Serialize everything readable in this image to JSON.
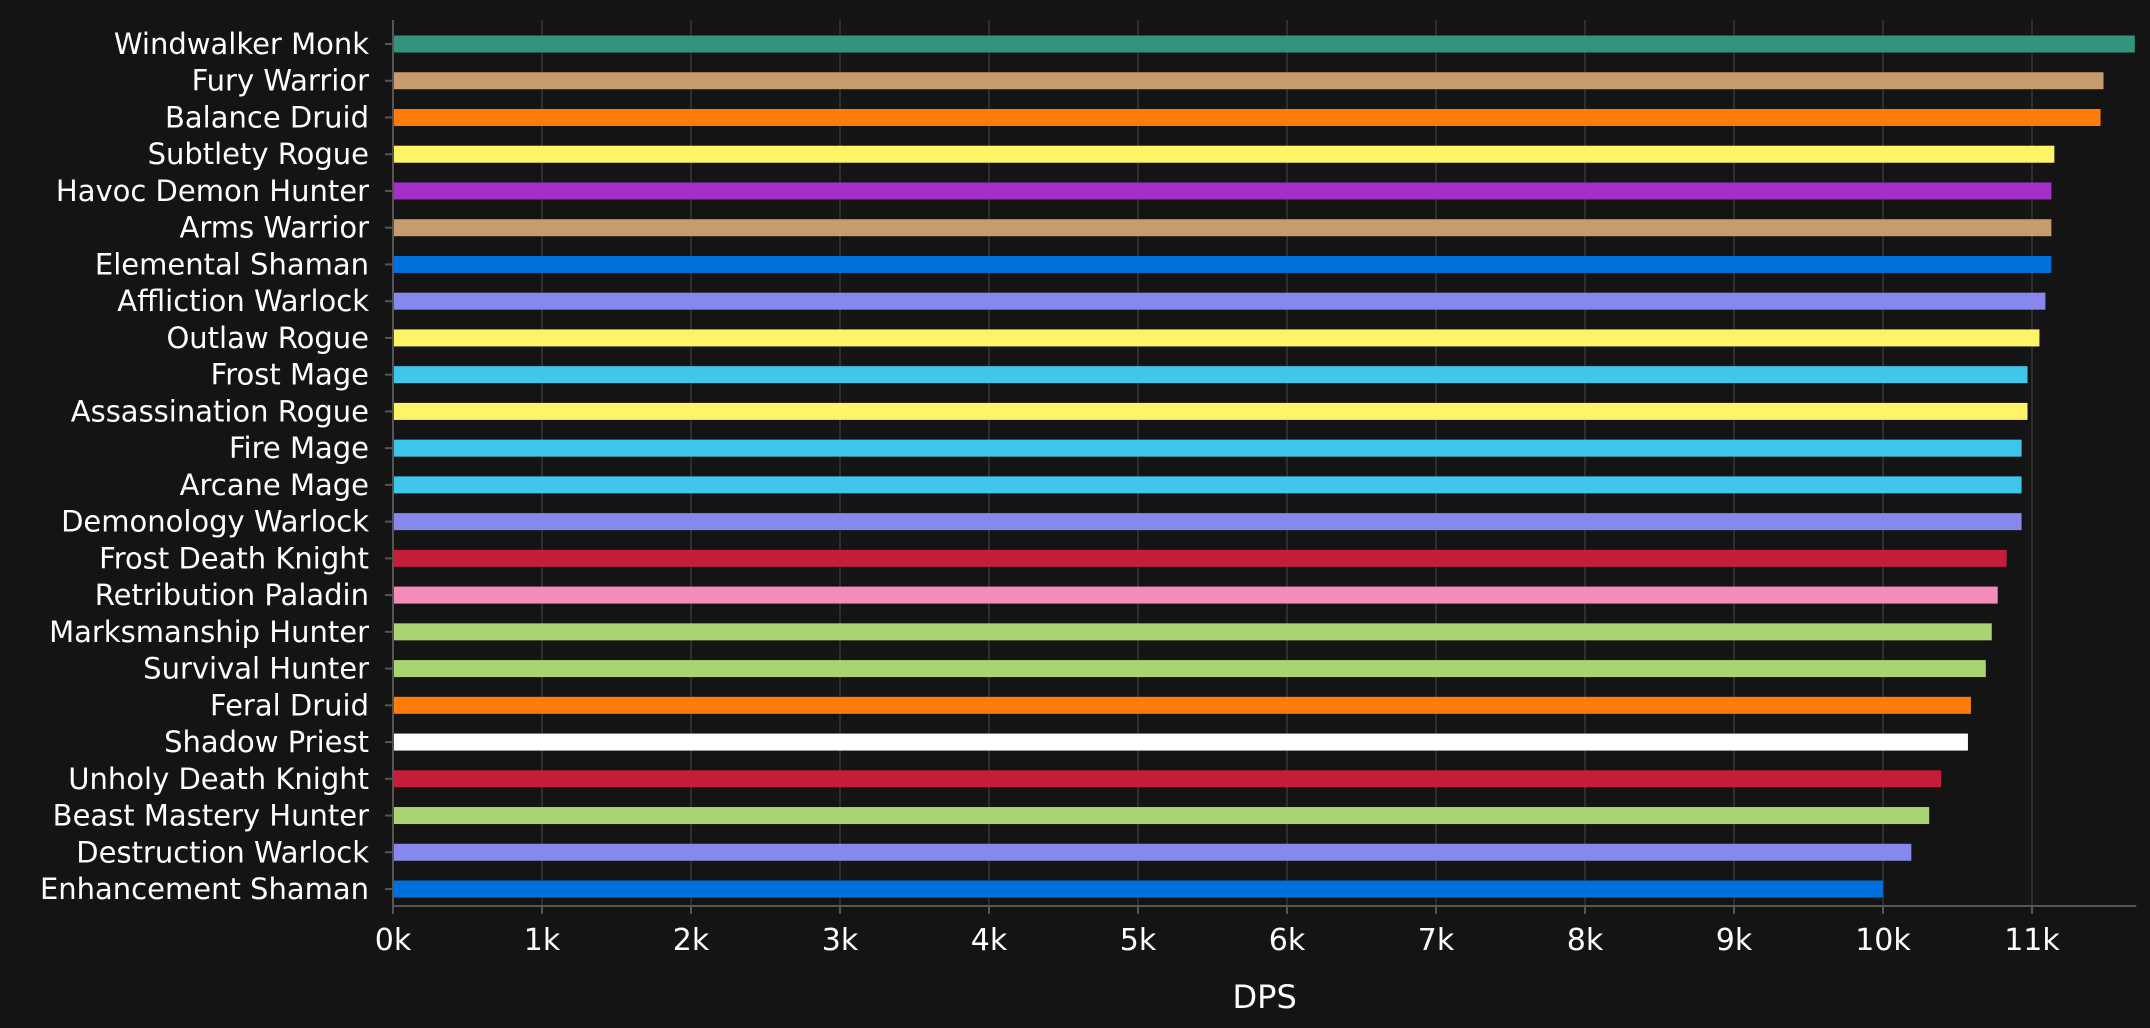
{
  "chart_data": {
    "type": "bar",
    "orientation": "horizontal",
    "title": "",
    "xlabel": "DPS",
    "ylabel": "",
    "xlim": [
      0,
      11700
    ],
    "grid": true,
    "legend": "none",
    "x_ticks": [
      0,
      1000,
      2000,
      3000,
      4000,
      5000,
      6000,
      7000,
      8000,
      9000,
      10000,
      11000
    ],
    "x_tick_labels": [
      "0k",
      "1k",
      "2k",
      "3k",
      "4k",
      "5k",
      "6k",
      "7k",
      "8k",
      "9k",
      "10k",
      "11k"
    ],
    "categories": [
      "Windwalker Monk",
      "Fury Warrior",
      "Balance Druid",
      "Subtlety Rogue",
      "Havoc Demon Hunter",
      "Arms Warrior",
      "Elemental Shaman",
      "Affliction Warlock",
      "Outlaw Rogue",
      "Frost Mage",
      "Assassination Rogue",
      "Fire Mage",
      "Arcane Mage",
      "Demonology Warlock",
      "Frost Death Knight",
      "Retribution Paladin",
      "Marksmanship Hunter",
      "Survival Hunter",
      "Feral Druid",
      "Shadow Priest",
      "Unholy Death Knight",
      "Beast Mastery Hunter",
      "Destruction Warlock",
      "Enhancement Shaman"
    ],
    "values": [
      11690,
      11480,
      11460,
      11150,
      11130,
      11130,
      11130,
      11090,
      11050,
      10970,
      10970,
      10930,
      10930,
      10930,
      10830,
      10770,
      10730,
      10690,
      10590,
      10570,
      10390,
      10310,
      10190,
      10000
    ],
    "colors": [
      "#33937F",
      "#C69B6D",
      "#FF7C0A",
      "#FFF468",
      "#A330C9",
      "#C69B6D",
      "#0070DD",
      "#8788EE",
      "#FFF468",
      "#3FC7EB",
      "#FFF468",
      "#3FC7EB",
      "#3FC7EB",
      "#8788EE",
      "#C41E3A",
      "#F48CBA",
      "#AAD372",
      "#AAD372",
      "#FF7C0A",
      "#FFFFFF",
      "#C41E3A",
      "#AAD372",
      "#8788EE",
      "#0070DD"
    ]
  },
  "style": {
    "background": "#141414",
    "grid_color": "#2e2e2e",
    "axis_color": "#555555",
    "text_color": "#ffffff"
  }
}
